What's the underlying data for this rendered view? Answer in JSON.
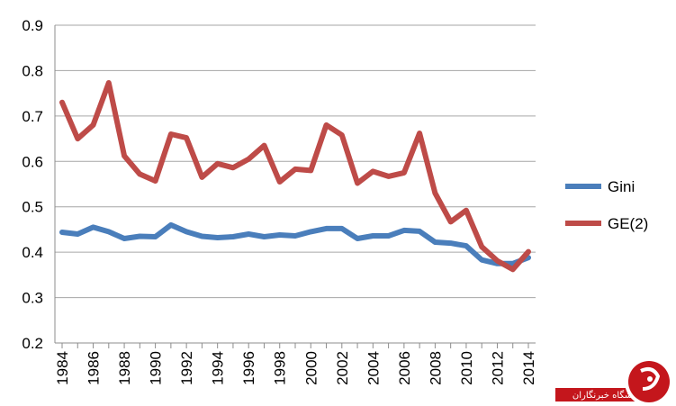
{
  "chart_data": {
    "type": "line",
    "title": "",
    "xlabel": "",
    "ylabel": "",
    "x": [
      1984,
      1985,
      1986,
      1987,
      1988,
      1989,
      1990,
      1991,
      1992,
      1993,
      1994,
      1995,
      1996,
      1997,
      1998,
      1999,
      2000,
      2001,
      2002,
      2003,
      2004,
      2005,
      2006,
      2007,
      2008,
      2009,
      2010,
      2011,
      2012,
      2013,
      2014
    ],
    "x_tick_labels": [
      "1984",
      "1986",
      "1988",
      "1990",
      "1992",
      "1994",
      "1996",
      "1998",
      "2000",
      "2002",
      "2004",
      "2006",
      "2008",
      "2010",
      "2012",
      "2014"
    ],
    "ylim": [
      0.2,
      0.9
    ],
    "y_tick_labels": [
      "0.2",
      "0.3",
      "0.4",
      "0.5",
      "0.6",
      "0.7",
      "0.8",
      "0.9"
    ],
    "grid": true,
    "legend_position": "right",
    "series": [
      {
        "name": "Gini",
        "color": "#4a7ebb",
        "values": [
          0.444,
          0.44,
          0.455,
          0.445,
          0.43,
          0.435,
          0.434,
          0.46,
          0.445,
          0.435,
          0.432,
          0.434,
          0.44,
          0.434,
          0.438,
          0.436,
          0.445,
          0.452,
          0.452,
          0.43,
          0.436,
          0.436,
          0.448,
          0.446,
          0.422,
          0.42,
          0.414,
          0.383,
          0.375,
          0.375,
          0.388
        ]
      },
      {
        "name": "GE(2)",
        "color": "#be4b48",
        "values": [
          0.73,
          0.65,
          0.68,
          0.773,
          0.612,
          0.572,
          0.557,
          0.66,
          0.652,
          0.565,
          0.595,
          0.586,
          0.605,
          0.635,
          0.555,
          0.583,
          0.58,
          0.68,
          0.658,
          0.552,
          0.578,
          0.567,
          0.575,
          0.662,
          0.53,
          0.467,
          0.492,
          0.412,
          0.381,
          0.362,
          0.401
        ]
      }
    ]
  },
  "watermark": {
    "text": "باشگاه خبرنگاران",
    "badge_color": "#c4161c",
    "icon": "logo-badge-icon"
  }
}
